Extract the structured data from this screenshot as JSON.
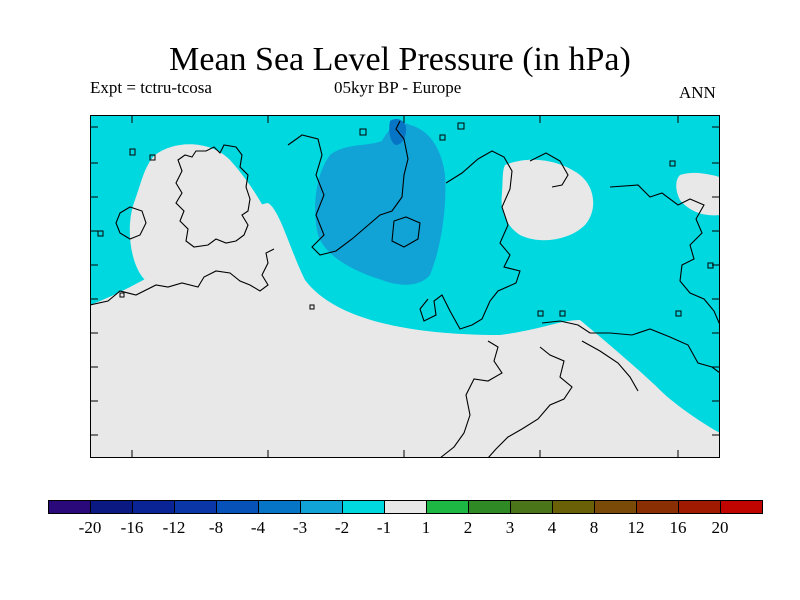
{
  "title": "Mean Sea Level Pressure (in hPa)",
  "experiment": "Expt = tctru-tcosa",
  "period_region": "05kyr BP - Europe",
  "season": "ANN",
  "colors": {
    "land_neutral": "#e8e8e8",
    "light_negative": "#00d8e0",
    "medium_negative": "#12a3d6",
    "deep_negative": "#0775c6"
  },
  "legend": {
    "bins": [
      {
        "color": "#2a0a7a"
      },
      {
        "color": "#0a1a82"
      },
      {
        "color": "#0a2496"
      },
      {
        "color": "#0a36a8"
      },
      {
        "color": "#0652b8"
      },
      {
        "color": "#0775c6"
      },
      {
        "color": "#12a3d6"
      },
      {
        "color": "#00d8e0"
      },
      {
        "color": "#e8e8e8"
      },
      {
        "color": "#1db843"
      },
      {
        "color": "#2f8a26"
      },
      {
        "color": "#4a7518"
      },
      {
        "color": "#6a6008"
      },
      {
        "color": "#7a4a08"
      },
      {
        "color": "#8a2e04"
      },
      {
        "color": "#a01a02"
      },
      {
        "color": "#c00400"
      }
    ],
    "labels": [
      "-20",
      "-16",
      "-12",
      "-8",
      "-4",
      "-3",
      "-2",
      "-1",
      "1",
      "2",
      "3",
      "4",
      "8",
      "12",
      "16",
      "20"
    ]
  }
}
